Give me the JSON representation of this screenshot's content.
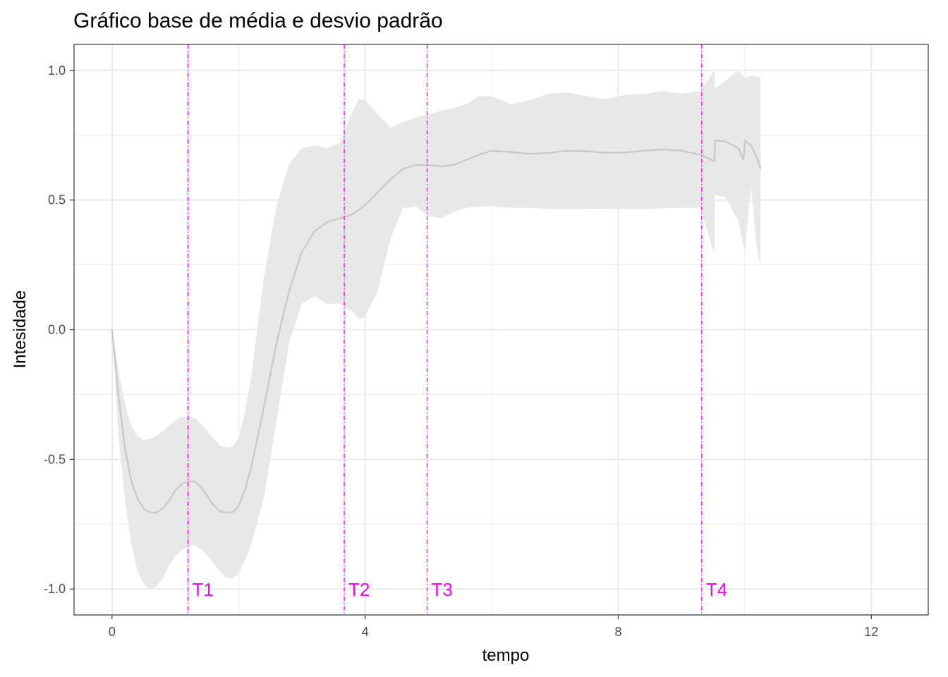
{
  "chart_data": {
    "type": "area",
    "title": "Gráfico base de média e desvio padrão",
    "xlabel": "tempo",
    "ylabel": "Intesidade",
    "xlim": [
      -0.6,
      12.9
    ],
    "ylim": [
      -1.1,
      1.1
    ],
    "x_ticks": [
      0,
      4,
      8,
      12
    ],
    "x_tick_labels": [
      "0",
      "4",
      "8",
      "12"
    ],
    "y_ticks": [
      -1.0,
      -0.5,
      0.0,
      0.5,
      1.0
    ],
    "y_tick_labels": [
      "-1.0",
      "-0.5",
      "0.0",
      "0.5",
      "1.0"
    ],
    "grid": true,
    "colors": {
      "mean_line": "#c8c8c8",
      "band": "#e8e8e8",
      "markers": "#ff00ff",
      "grid": "#ebebeb",
      "border": "#333333"
    },
    "mean": {
      "x": [
        0,
        0.1,
        0.2,
        0.3,
        0.4,
        0.5,
        0.6,
        0.7,
        0.8,
        0.9,
        1.0,
        1.1,
        1.2,
        1.3,
        1.4,
        1.5,
        1.6,
        1.7,
        1.8,
        1.9,
        2.0,
        2.1,
        2.2,
        2.4,
        2.6,
        2.8,
        3.0,
        3.2,
        3.4,
        3.6,
        3.7,
        3.8,
        4.0,
        4.2,
        4.4,
        4.6,
        4.8,
        5.0,
        5.2,
        5.4,
        5.6,
        5.8,
        6.0,
        6.3,
        6.6,
        6.9,
        7.2,
        7.5,
        7.8,
        8.1,
        8.4,
        8.7,
        9.0,
        9.3,
        9.52,
        9.53,
        9.7,
        9.9,
        9.98,
        10.0,
        10.1,
        10.2,
        10.25
      ],
      "y": [
        0.0,
        -0.25,
        -0.45,
        -0.58,
        -0.65,
        -0.69,
        -0.705,
        -0.705,
        -0.69,
        -0.66,
        -0.62,
        -0.595,
        -0.585,
        -0.585,
        -0.605,
        -0.64,
        -0.675,
        -0.7,
        -0.705,
        -0.705,
        -0.68,
        -0.62,
        -0.53,
        -0.3,
        -0.05,
        0.15,
        0.3,
        0.38,
        0.415,
        0.43,
        0.435,
        0.445,
        0.48,
        0.53,
        0.58,
        0.62,
        0.635,
        0.635,
        0.63,
        0.635,
        0.655,
        0.675,
        0.69,
        0.685,
        0.678,
        0.682,
        0.69,
        0.688,
        0.682,
        0.683,
        0.69,
        0.695,
        0.69,
        0.675,
        0.65,
        0.73,
        0.725,
        0.7,
        0.655,
        0.73,
        0.71,
        0.66,
        0.62
      ]
    },
    "band": {
      "x": [
        0,
        0.1,
        0.2,
        0.3,
        0.4,
        0.5,
        0.6,
        0.7,
        0.8,
        0.9,
        1.0,
        1.1,
        1.2,
        1.3,
        1.4,
        1.5,
        1.6,
        1.7,
        1.8,
        1.9,
        2.0,
        2.1,
        2.2,
        2.4,
        2.6,
        2.8,
        3.0,
        3.2,
        3.4,
        3.6,
        3.8,
        3.9,
        4.0,
        4.2,
        4.4,
        4.6,
        4.8,
        5.0,
        5.2,
        5.4,
        5.6,
        5.8,
        6.0,
        6.3,
        6.6,
        6.9,
        7.2,
        7.5,
        7.8,
        8.1,
        8.4,
        8.7,
        9.0,
        9.3,
        9.52,
        9.53,
        9.7,
        9.9,
        10.0,
        10.1,
        10.2,
        10.25
      ],
      "upper": [
        0.0,
        -0.15,
        -0.28,
        -0.37,
        -0.41,
        -0.425,
        -0.42,
        -0.41,
        -0.39,
        -0.37,
        -0.35,
        -0.335,
        -0.335,
        -0.34,
        -0.36,
        -0.39,
        -0.42,
        -0.445,
        -0.455,
        -0.45,
        -0.42,
        -0.32,
        -0.18,
        0.2,
        0.48,
        0.64,
        0.7,
        0.71,
        0.7,
        0.72,
        0.84,
        0.89,
        0.885,
        0.83,
        0.78,
        0.8,
        0.82,
        0.83,
        0.845,
        0.855,
        0.87,
        0.9,
        0.9,
        0.87,
        0.885,
        0.91,
        0.915,
        0.9,
        0.89,
        0.905,
        0.91,
        0.92,
        0.91,
        0.92,
        1.0,
        0.93,
        0.96,
        1.0,
        0.97,
        0.98,
        0.975,
        0.97
      ],
      "lower": [
        0.0,
        -0.4,
        -0.65,
        -0.82,
        -0.93,
        -0.98,
        -1.0,
        -0.99,
        -0.96,
        -0.91,
        -0.875,
        -0.85,
        -0.835,
        -0.83,
        -0.845,
        -0.87,
        -0.9,
        -0.93,
        -0.955,
        -0.96,
        -0.94,
        -0.89,
        -0.83,
        -0.65,
        -0.35,
        -0.05,
        0.1,
        0.13,
        0.1,
        0.1,
        0.07,
        0.04,
        0.05,
        0.15,
        0.35,
        0.47,
        0.475,
        0.44,
        0.43,
        0.455,
        0.47,
        0.475,
        0.475,
        0.47,
        0.47,
        0.465,
        0.465,
        0.466,
        0.466,
        0.465,
        0.465,
        0.468,
        0.47,
        0.47,
        0.29,
        0.52,
        0.51,
        0.42,
        0.3,
        0.55,
        0.3,
        0.25
      ]
    },
    "markers": [
      {
        "x": 1.2,
        "label": "T1"
      },
      {
        "x": 3.67,
        "label": "T2"
      },
      {
        "x": 4.98,
        "label": "T3"
      },
      {
        "x": 9.32,
        "label": "T4"
      }
    ],
    "marker_label_y": -1.0
  }
}
